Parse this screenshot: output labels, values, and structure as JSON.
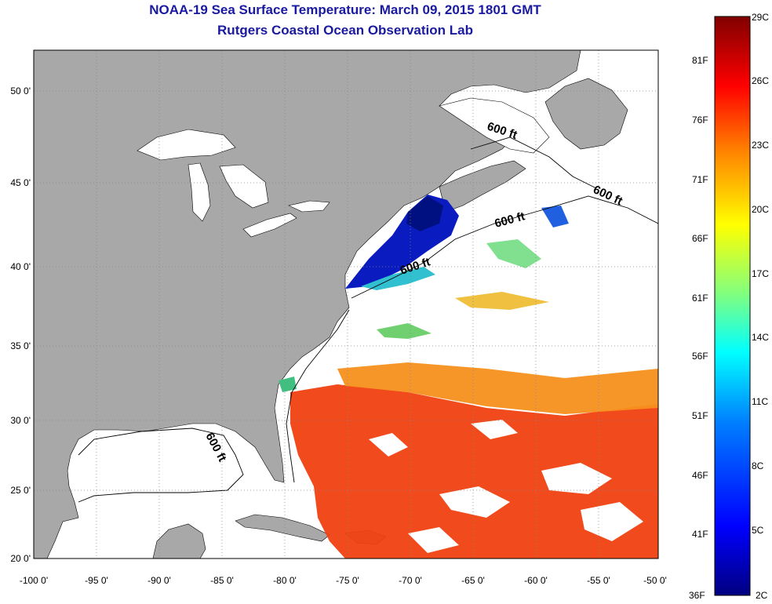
{
  "title": "NOAA-19 Sea Surface Temperature:  March 09, 2015 1801 GMT",
  "subtitle": "Rutgers Coastal Ocean Observation Lab",
  "map": {
    "lon_labels": [
      "-100 0'",
      "-95 0'",
      "-90 0'",
      "-85 0'",
      "-80 0'",
      "-75 0'",
      "-70 0'",
      "-65 0'",
      "-60 0'",
      "-55 0'",
      "-50 0'"
    ],
    "lat_labels": [
      "20 0'",
      "25 0'",
      "30 0'",
      "35 0'",
      "40 0'",
      "45 0'",
      "50 0'"
    ],
    "lon_range": [
      -100,
      -50
    ],
    "lat_range": [
      20,
      52.5
    ],
    "isobath_labels": [
      "600 ft",
      "600 ft",
      "600 ft",
      "600 ft",
      "600 ft"
    ],
    "colors": {
      "land": "#a8a8a8",
      "water_cloud": "#ffffff",
      "grid": "#888888"
    }
  },
  "colorbar": {
    "celsius_labels": [
      "29C",
      "26C",
      "23C",
      "20C",
      "17C",
      "14C",
      "11C",
      "8C",
      "5C",
      "2C"
    ],
    "fahrenheit_labels": [
      "81F",
      "76F",
      "71F",
      "66F",
      "61F",
      "56F",
      "51F",
      "46F",
      "41F",
      "36F"
    ],
    "range_c": [
      2,
      29
    ],
    "colors": [
      "#000080",
      "#0000ff",
      "#0080ff",
      "#00ffff",
      "#80ff80",
      "#ffff00",
      "#ff8000",
      "#ff0000",
      "#800000"
    ]
  }
}
